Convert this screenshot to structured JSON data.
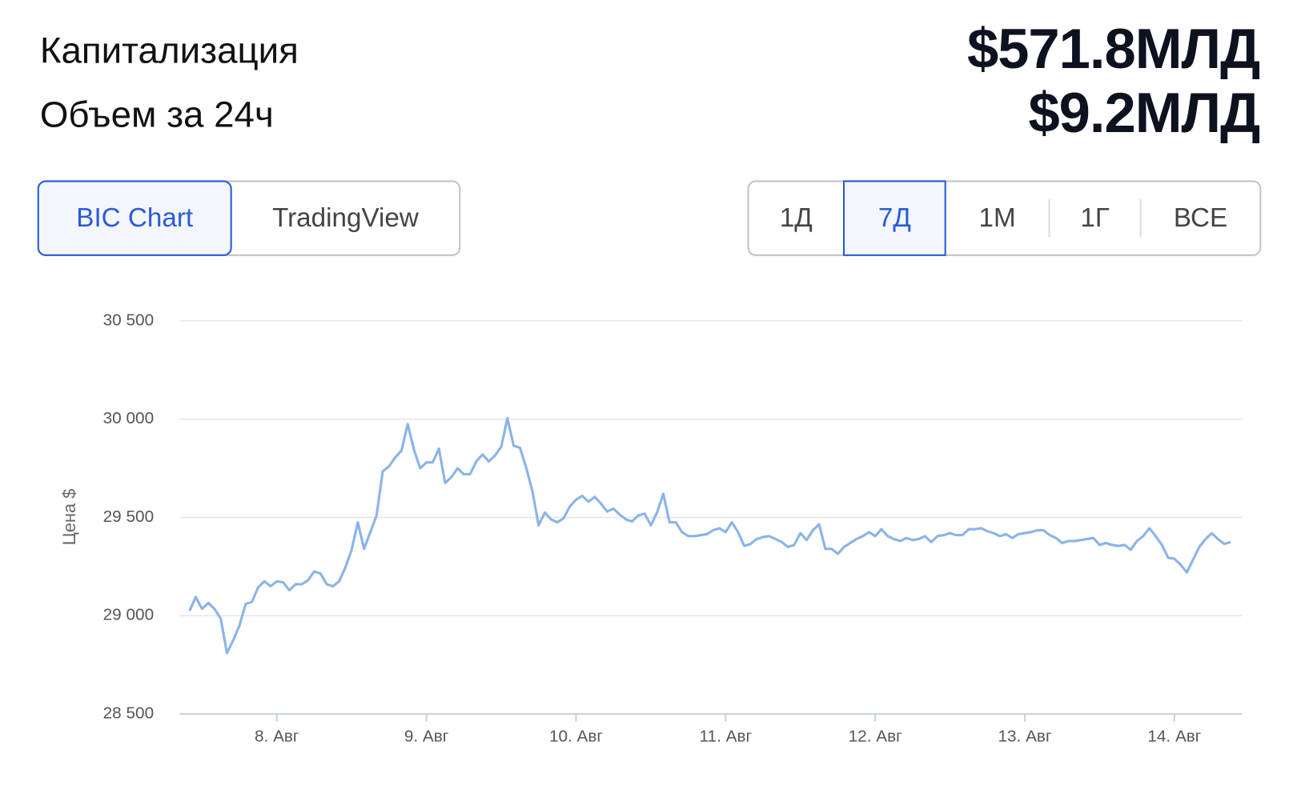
{
  "header": {
    "market_cap_label": "Капитализация",
    "market_cap_value": "$571.8МЛД",
    "volume_label": "Объем за 24ч",
    "volume_value": "$9.2МЛД"
  },
  "chart_source_tabs": {
    "options": [
      "BIC Chart",
      "TradingView"
    ],
    "selected": 0
  },
  "period_tabs": {
    "options": [
      "1Д",
      "7Д",
      "1М",
      "1Г",
      "ВСЕ"
    ],
    "selected": 1
  },
  "chart_data": {
    "type": "line",
    "y_label": "Цена $",
    "color": "#8ab4e8",
    "grid": true,
    "ylim": [
      28500,
      30500
    ],
    "yticks": [
      {
        "value": 28500,
        "label": "28 500"
      },
      {
        "value": 29000,
        "label": "29 000"
      },
      {
        "value": 29500,
        "label": "29 500"
      },
      {
        "value": 30000,
        "label": "30 000"
      },
      {
        "value": 30500,
        "label": "30 500"
      }
    ],
    "categories": [
      null,
      null,
      null,
      null,
      null,
      null,
      null,
      null,
      null,
      null,
      null,
      null,
      null,
      null,
      "8. Авг",
      null,
      null,
      null,
      null,
      null,
      null,
      null,
      null,
      null,
      null,
      null,
      null,
      null,
      null,
      null,
      null,
      null,
      null,
      null,
      null,
      null,
      null,
      null,
      "9. Авг",
      null,
      null,
      null,
      null,
      null,
      null,
      null,
      null,
      null,
      null,
      null,
      null,
      null,
      null,
      null,
      null,
      null,
      null,
      null,
      null,
      null,
      null,
      null,
      "10. Авг",
      null,
      null,
      null,
      null,
      null,
      null,
      null,
      null,
      null,
      null,
      null,
      null,
      null,
      null,
      null,
      null,
      null,
      null,
      null,
      null,
      null,
      null,
      null,
      "11. Авг",
      null,
      null,
      null,
      null,
      null,
      null,
      null,
      null,
      null,
      null,
      null,
      null,
      null,
      null,
      null,
      null,
      null,
      null,
      null,
      null,
      null,
      null,
      null,
      "12. Авг",
      null,
      null,
      null,
      null,
      null,
      null,
      null,
      null,
      null,
      null,
      null,
      null,
      null,
      null,
      null,
      null,
      null,
      null,
      null,
      null,
      null,
      null,
      null,
      "13. Авг",
      null,
      null,
      null,
      null,
      null,
      null,
      null,
      null,
      null,
      null,
      null,
      null,
      null,
      null,
      null,
      null,
      null,
      null,
      null,
      null,
      null,
      null,
      null,
      "14. Авг",
      null,
      null,
      null,
      null,
      null,
      null,
      null,
      null,
      null
    ],
    "values": [
      29025,
      29095,
      29035,
      29065,
      29035,
      28985,
      28810,
      28875,
      28950,
      29060,
      29070,
      29145,
      29175,
      29150,
      29175,
      29170,
      29130,
      29160,
      29160,
      29180,
      29225,
      29215,
      29160,
      29150,
      29175,
      29245,
      29335,
      29475,
      29340,
      29425,
      29510,
      29735,
      29760,
      29805,
      29840,
      29975,
      29845,
      29750,
      29780,
      29780,
      29850,
      29675,
      29705,
      29750,
      29720,
      29720,
      29785,
      29820,
      29785,
      29815,
      29860,
      30005,
      29865,
      29855,
      29755,
      29635,
      29460,
      29525,
      29490,
      29475,
      29495,
      29555,
      29590,
      29610,
      29580,
      29605,
      29570,
      29530,
      29545,
      29515,
      29490,
      29480,
      29510,
      29520,
      29460,
      29525,
      29620,
      29475,
      29475,
      29425,
      29405,
      29405,
      29410,
      29415,
      29435,
      29445,
      29425,
      29475,
      29425,
      29355,
      29365,
      29390,
      29400,
      29405,
      29390,
      29375,
      29350,
      29360,
      29420,
      29385,
      29435,
      29465,
      29340,
      29340,
      29315,
      29350,
      29370,
      29390,
      29405,
      29425,
      29405,
      29440,
      29405,
      29390,
      29380,
      29395,
      29385,
      29390,
      29405,
      29375,
      29405,
      29410,
      29420,
      29410,
      29410,
      29440,
      29440,
      29445,
      29430,
      29420,
      29405,
      29415,
      29395,
      29415,
      29420,
      29425,
      29435,
      29435,
      29410,
      29395,
      29370,
      29380,
      29380,
      29385,
      29390,
      29395,
      29360,
      29370,
      29360,
      29355,
      29360,
      29335,
      29380,
      29405,
      29445,
      29405,
      29360,
      29295,
      29290,
      29260,
      29220,
      29285,
      29350,
      29390,
      29420,
      29390,
      29365,
      29375
    ]
  }
}
